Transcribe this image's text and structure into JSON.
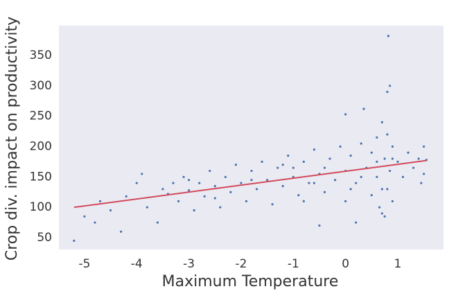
{
  "chart_data": {
    "type": "scatter",
    "xlabel": "Maximum Temperature",
    "ylabel": "Crop div. impact on productivity",
    "xlim": [
      -5.49,
      1.876
    ],
    "ylim": [
      30.6,
      399
    ],
    "xticks": [
      -5,
      -4,
      -3,
      -2,
      -1,
      0,
      1
    ],
    "yticks": [
      50,
      100,
      150,
      200,
      250,
      300,
      350
    ],
    "grid": false,
    "points": {
      "color": "#4c72b0",
      "x": [
        -5.2,
        -5.0,
        -4.8,
        -4.7,
        -4.5,
        -4.3,
        -4.2,
        -4.0,
        -3.9,
        -3.8,
        -3.6,
        -3.5,
        -3.4,
        -3.3,
        -3.2,
        -3.1,
        -3.0,
        -2.9,
        -2.8,
        -2.7,
        -2.6,
        -2.5,
        -2.4,
        -2.3,
        -2.2,
        -2.1,
        -2.0,
        -1.9,
        -1.8,
        -1.7,
        -1.6,
        -1.5,
        -1.4,
        -1.3,
        -1.2,
        -1.1,
        -1.0,
        -0.9,
        -0.8,
        -0.7,
        -0.6,
        -0.5,
        -0.5,
        -0.4,
        -0.3,
        -0.2,
        -0.1,
        0.0,
        0.0,
        0.0,
        0.1,
        0.2,
        0.2,
        0.3,
        0.35,
        0.4,
        0.5,
        0.5,
        0.6,
        0.6,
        0.65,
        0.7,
        0.7,
        0.75,
        0.75,
        0.8,
        0.8,
        0.82,
        0.85,
        0.85,
        0.9,
        0.9,
        1.0,
        1.1,
        1.2,
        1.3,
        1.4,
        1.5,
        1.55,
        1.5,
        1.45,
        -1.2,
        -0.8,
        -0.4,
        0.1,
        -2.5,
        -3.0,
        -1.8,
        -1.0,
        -0.6,
        0.3,
        0.6,
        0.7,
        0.8,
        0.9
      ],
      "y": [
        45,
        85,
        75,
        110,
        95,
        60,
        118,
        140,
        155,
        100,
        75,
        130,
        122,
        140,
        110,
        150,
        128,
        95,
        140,
        118,
        160,
        135,
        100,
        150,
        125,
        170,
        140,
        110,
        160,
        130,
        175,
        145,
        105,
        165,
        135,
        185,
        150,
        120,
        175,
        140,
        195,
        155,
        70,
        125,
        180,
        145,
        200,
        160,
        253,
        110,
        185,
        140,
        75,
        205,
        262,
        165,
        120,
        190,
        150,
        215,
        100,
        240,
        130,
        85,
        180,
        220,
        290,
        382,
        160,
        300,
        110,
        200,
        175,
        150,
        190,
        165,
        180,
        155,
        178,
        200,
        140,
        170,
        110,
        165,
        130,
        115,
        145,
        145,
        165,
        140,
        150,
        175,
        90,
        130,
        180
      ]
    },
    "fit": {
      "color": "#d1495b",
      "x": [
        -5.2,
        1.55
      ],
      "y": [
        100,
        177
      ]
    }
  }
}
